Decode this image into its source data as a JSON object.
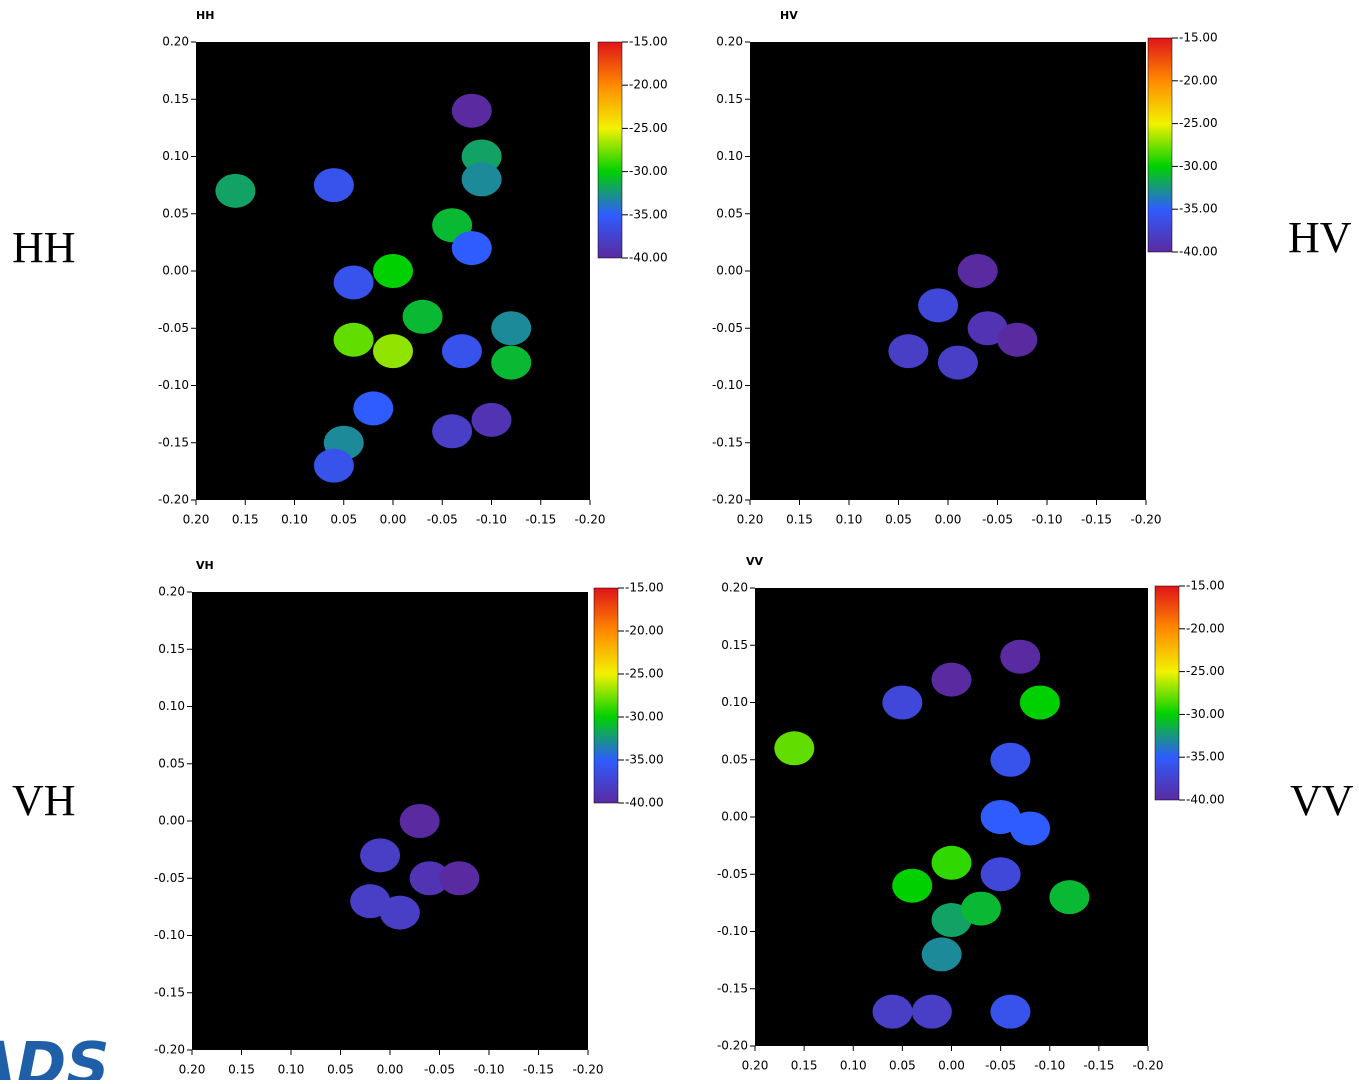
{
  "logo": "ADS",
  "chart_data": [
    {
      "type": "heatmap",
      "title": "HH",
      "side_label": "HH",
      "x": [
        0.16,
        0.06,
        -0.06,
        -0.08,
        -0.09,
        -0.09,
        0.0,
        0.04,
        0.0,
        -0.03,
        0.04,
        -0.12,
        -0.12,
        -0.07,
        0.02,
        0.05,
        0.06,
        -0.06,
        -0.1,
        -0.08
      ],
      "y": [
        0.07,
        0.075,
        0.04,
        0.02,
        0.1,
        0.08,
        0.0,
        -0.06,
        -0.07,
        -0.04,
        -0.01,
        -0.05,
        -0.08,
        -0.07,
        -0.12,
        -0.15,
        -0.17,
        -0.14,
        -0.13,
        0.14
      ],
      "values": [
        -32,
        -36,
        -31,
        -35,
        -32,
        -33,
        -30,
        -28,
        -27,
        -31,
        -36,
        -33,
        -31,
        -36,
        -35,
        -33,
        -36,
        -38,
        -39,
        -40
      ],
      "xlim": [
        0.2,
        -0.2
      ],
      "ylim": [
        -0.2,
        0.2
      ],
      "xticks": [
        {
          "value": 0.2,
          "label": "0.20"
        },
        {
          "value": 0.15,
          "label": "0.15"
        },
        {
          "value": 0.1,
          "label": "0.10"
        },
        {
          "value": 0.05,
          "label": "0.05"
        },
        {
          "value": 0,
          "label": "0.00"
        },
        {
          "value": -0.05,
          "label": "-0.05"
        },
        {
          "value": -0.1,
          "label": "-0.10"
        },
        {
          "value": -0.15,
          "label": "-0.15"
        },
        {
          "value": -0.2,
          "label": "-0.20"
        }
      ],
      "yticks": [
        {
          "value": -0.2,
          "label": "-0.20"
        },
        {
          "value": -0.15,
          "label": "-0.15"
        },
        {
          "value": -0.1,
          "label": "-0.10"
        },
        {
          "value": -0.05,
          "label": "-0.05"
        },
        {
          "value": 0,
          "label": "0.00"
        },
        {
          "value": 0.05,
          "label": "0.05"
        },
        {
          "value": 0.1,
          "label": "0.10"
        },
        {
          "value": 0.15,
          "label": "0.15"
        },
        {
          "value": 0.2,
          "label": "0.20"
        }
      ],
      "zlim": [
        -40,
        -15
      ],
      "zticks": [
        {
          "value": -15,
          "label": "-15.00"
        },
        {
          "value": -20,
          "label": "-20.00"
        },
        {
          "value": -25,
          "label": "-25.00"
        },
        {
          "value": -30,
          "label": "-30.00"
        },
        {
          "value": -35,
          "label": "-35.00"
        },
        {
          "value": -40,
          "label": "-40.00"
        }
      ],
      "colormap": [
        "#5a2aa0",
        "#2f5cff",
        "#00d000",
        "#f2f200",
        "#ff8a00",
        "#e0141a"
      ],
      "background": "#000000"
    },
    {
      "type": "heatmap",
      "title": "HV",
      "side_label": "HV",
      "x": [
        0.01,
        0.04,
        -0.01,
        -0.04,
        -0.03,
        -0.07
      ],
      "y": [
        -0.03,
        -0.07,
        -0.08,
        -0.05,
        0.0,
        -0.06
      ],
      "values": [
        -37,
        -38,
        -38,
        -39,
        -40,
        -40
      ],
      "xlim": [
        0.2,
        -0.2
      ],
      "ylim": [
        -0.2,
        0.2
      ],
      "xticks": [
        {
          "value": 0.2,
          "label": "0.20"
        },
        {
          "value": 0.15,
          "label": "0.15"
        },
        {
          "value": 0.1,
          "label": "0.10"
        },
        {
          "value": 0.05,
          "label": "0.05"
        },
        {
          "value": 0,
          "label": "0.00"
        },
        {
          "value": -0.05,
          "label": "-0.05"
        },
        {
          "value": -0.1,
          "label": "-0.10"
        },
        {
          "value": -0.15,
          "label": "-0.15"
        },
        {
          "value": -0.2,
          "label": "-0.20"
        }
      ],
      "yticks": [
        {
          "value": -0.2,
          "label": "-0.20"
        },
        {
          "value": -0.15,
          "label": "-0.15"
        },
        {
          "value": -0.1,
          "label": "-0.10"
        },
        {
          "value": -0.05,
          "label": "-0.05"
        },
        {
          "value": 0,
          "label": "0.00"
        },
        {
          "value": 0.05,
          "label": "0.05"
        },
        {
          "value": 0.1,
          "label": "0.10"
        },
        {
          "value": 0.15,
          "label": "0.15"
        },
        {
          "value": 0.2,
          "label": "0.20"
        }
      ],
      "zlim": [
        -40,
        -15
      ],
      "zticks": [
        {
          "value": -15,
          "label": "-15.00"
        },
        {
          "value": -20,
          "label": "-20.00"
        },
        {
          "value": -25,
          "label": "-25.00"
        },
        {
          "value": -30,
          "label": "-30.00"
        },
        {
          "value": -35,
          "label": "-35.00"
        },
        {
          "value": -40,
          "label": "-40.00"
        }
      ],
      "colormap": [
        "#5a2aa0",
        "#2f5cff",
        "#00d000",
        "#f2f200",
        "#ff8a00",
        "#e0141a"
      ],
      "background": "#000000"
    },
    {
      "type": "heatmap",
      "title": "VH",
      "side_label": "VH",
      "x": [
        0.01,
        0.02,
        -0.01,
        -0.04,
        -0.03,
        -0.07
      ],
      "y": [
        -0.03,
        -0.07,
        -0.08,
        -0.05,
        0.0,
        -0.05
      ],
      "values": [
        -38,
        -38,
        -38,
        -39,
        -40,
        -40
      ],
      "xlim": [
        0.2,
        -0.2
      ],
      "ylim": [
        -0.2,
        0.2
      ],
      "xticks": [
        {
          "value": 0.2,
          "label": "0.20"
        },
        {
          "value": 0.15,
          "label": "0.15"
        },
        {
          "value": 0.1,
          "label": "0.10"
        },
        {
          "value": 0.05,
          "label": "0.05"
        },
        {
          "value": 0,
          "label": "0.00"
        },
        {
          "value": -0.05,
          "label": "-0.05"
        },
        {
          "value": -0.1,
          "label": "-0.10"
        },
        {
          "value": -0.15,
          "label": "-0.15"
        },
        {
          "value": -0.2,
          "label": "-0.20"
        }
      ],
      "yticks": [
        {
          "value": -0.2,
          "label": "-0.20"
        },
        {
          "value": -0.15,
          "label": "-0.15"
        },
        {
          "value": -0.1,
          "label": "-0.10"
        },
        {
          "value": -0.05,
          "label": "-0.05"
        },
        {
          "value": 0,
          "label": "0.00"
        },
        {
          "value": 0.05,
          "label": "0.05"
        },
        {
          "value": 0.1,
          "label": "0.10"
        },
        {
          "value": 0.15,
          "label": "0.15"
        },
        {
          "value": 0.2,
          "label": "0.20"
        }
      ],
      "zlim": [
        -40,
        -15
      ],
      "zticks": [
        {
          "value": -15,
          "label": "-15.00"
        },
        {
          "value": -20,
          "label": "-20.00"
        },
        {
          "value": -25,
          "label": "-25.00"
        },
        {
          "value": -30,
          "label": "-30.00"
        },
        {
          "value": -35,
          "label": "-35.00"
        },
        {
          "value": -40,
          "label": "-40.00"
        }
      ],
      "colormap": [
        "#5a2aa0",
        "#2f5cff",
        "#00d000",
        "#f2f200",
        "#ff8a00",
        "#e0141a"
      ],
      "background": "#000000"
    },
    {
      "type": "heatmap",
      "title": "VV",
      "side_label": "VV",
      "x": [
        0.16,
        0.05,
        0.0,
        -0.09,
        -0.07,
        -0.06,
        -0.05,
        -0.08,
        0.04,
        0.0,
        0.0,
        -0.03,
        -0.12,
        0.01,
        -0.06,
        0.06,
        0.02,
        -0.05
      ],
      "y": [
        0.06,
        0.1,
        0.12,
        0.1,
        0.14,
        0.05,
        0.0,
        -0.01,
        -0.06,
        -0.04,
        -0.09,
        -0.08,
        -0.07,
        -0.12,
        -0.17,
        -0.17,
        -0.17,
        -0.05
      ],
      "values": [
        -28,
        -37,
        -40,
        -30,
        -40,
        -36,
        -35,
        -35,
        -30,
        -29,
        -32,
        -31,
        -31,
        -33,
        -36,
        -38,
        -38,
        -37
      ],
      "xlim": [
        0.2,
        -0.2
      ],
      "ylim": [
        -0.2,
        0.2
      ],
      "xticks": [
        {
          "value": 0.2,
          "label": "0.20"
        },
        {
          "value": 0.15,
          "label": "0.15"
        },
        {
          "value": 0.1,
          "label": "0.10"
        },
        {
          "value": 0.05,
          "label": "0.05"
        },
        {
          "value": 0,
          "label": "0.00"
        },
        {
          "value": -0.05,
          "label": "-0.05"
        },
        {
          "value": -0.1,
          "label": "-0.10"
        },
        {
          "value": -0.15,
          "label": "-0.15"
        },
        {
          "value": -0.2,
          "label": "-0.20"
        }
      ],
      "yticks": [
        {
          "value": -0.2,
          "label": "-0.20"
        },
        {
          "value": -0.15,
          "label": "-0.15"
        },
        {
          "value": -0.1,
          "label": "-0.10"
        },
        {
          "value": -0.05,
          "label": "-0.05"
        },
        {
          "value": 0,
          "label": "0.00"
        },
        {
          "value": 0.05,
          "label": "0.05"
        },
        {
          "value": 0.1,
          "label": "0.10"
        },
        {
          "value": 0.15,
          "label": "0.15"
        },
        {
          "value": 0.2,
          "label": "0.20"
        }
      ],
      "zlim": [
        -40,
        -15
      ],
      "zticks": [
        {
          "value": -15,
          "label": "-15.00"
        },
        {
          "value": -20,
          "label": "-20.00"
        },
        {
          "value": -25,
          "label": "-25.00"
        },
        {
          "value": -30,
          "label": "-30.00"
        },
        {
          "value": -35,
          "label": "-35.00"
        },
        {
          "value": -40,
          "label": "-40.00"
        }
      ],
      "colormap": [
        "#5a2aa0",
        "#2f5cff",
        "#00d000",
        "#f2f200",
        "#ff8a00",
        "#e0141a"
      ],
      "background": "#000000"
    }
  ]
}
